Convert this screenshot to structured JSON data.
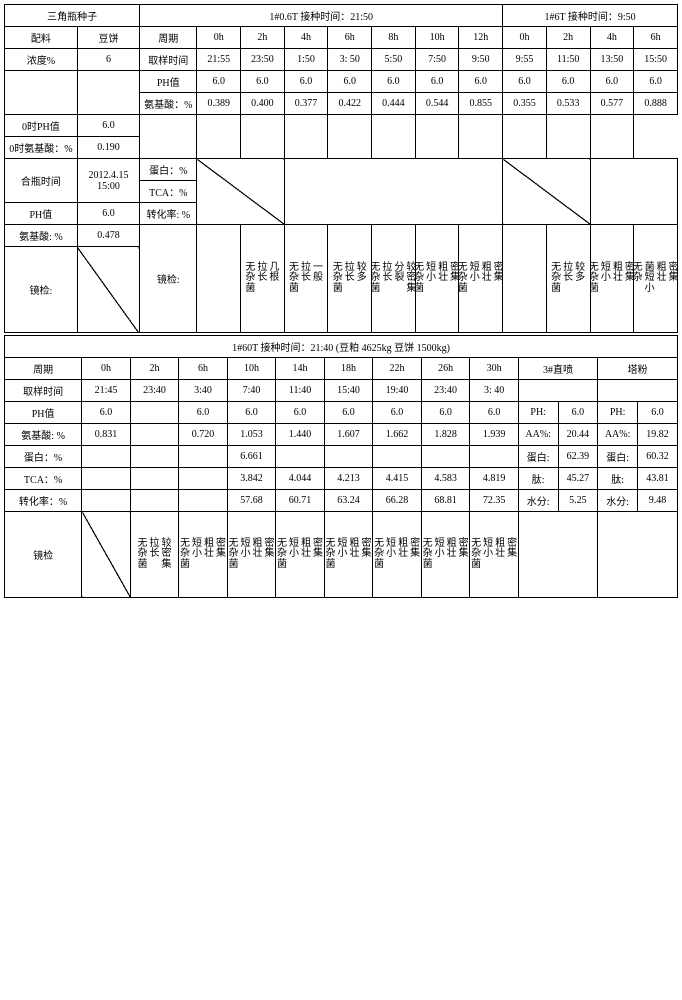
{
  "top": {
    "title_left": "三角瓶种子",
    "title_right1": "1#0.6T 接种时间：21:50",
    "title_right2": "1#6T 接种时间：9:50",
    "row1_labels": [
      "配料",
      "豆饼"
    ],
    "row1_label_period": "周期",
    "row1_hours_a": [
      "0h",
      "2h",
      "4h",
      "6h",
      "8h",
      "10h",
      "12h"
    ],
    "row1_hours_b": [
      "0h",
      "2h",
      "4h",
      "6h"
    ],
    "row2_label": "浓度%",
    "row2_val": "6",
    "row2_right": "取样时间",
    "row2_times_a": [
      "21:55",
      "23:50",
      "1:50",
      "3: 50",
      "5:50",
      "7:50",
      "9:50"
    ],
    "row2_times_b": [
      "9:55",
      "11:50",
      "13:50",
      "15:50"
    ],
    "row6_label_ph": "PH值",
    "row6_ph_val": "6.0",
    "row6_right": "PH值",
    "row6_ph_a": [
      "6.0",
      "6.0",
      "6.0",
      "6.0",
      "6.0",
      "6.0",
      "6.0"
    ],
    "row6_ph_b": [
      "6.0",
      "6.0",
      "6.0",
      "6.0"
    ],
    "row7_label": "0时氨基酸：%",
    "row7_val": "0.190",
    "row7_right": "氨基酸：%",
    "row7_a": [
      "0.389",
      "0.400",
      "0.377",
      "0.422",
      "0.444",
      "0.544",
      "0.855"
    ],
    "row7_b": [
      "0.355",
      "0.533",
      "0.577",
      "0.888"
    ],
    "row8_label": "0时PH值",
    "row8_val": "6.0",
    "row_hp_label": "合瓶时间",
    "row_hp_val": "2012.4.15 15:00",
    "row_hp_right": "蛋白：%",
    "row_tca_right": "TCA：%",
    "row_ph2_label": "PH值",
    "row_ph2_val": "6.0",
    "row_rate_right": "转化率: %",
    "row_amino_label": "氨基酸: %",
    "row_amino_val": "0.478",
    "jing_label": "镜检:",
    "jing_cols_a_2": [
      "无杂菌",
      "拉长",
      "几根"
    ],
    "jing_cols_a_4": [
      "无杂菌",
      "拉长",
      "一般"
    ],
    "jing_cols_a_6": [
      "无杂菌",
      "拉长",
      "较多"
    ],
    "jing_cols_a_8": [
      "无杂菌",
      "拉长",
      "分裂",
      "较密集"
    ],
    "jing_cols_a_10": [
      "无杂菌",
      "短小",
      "粗壮",
      "密集"
    ],
    "jing_cols_a_12": [
      "无杂菌",
      "短小",
      "粗壮",
      "密集"
    ],
    "jing_cols_b_2": [
      "无杂菌",
      "拉长",
      "较多"
    ],
    "jing_cols_b_4": [
      "无杂菌",
      "短小",
      "粗壮",
      "密集"
    ],
    "jing_cols_b_6": [
      "无 杂",
      "菌 短小",
      "粗壮",
      "密集"
    ]
  },
  "bot": {
    "title": "1#60T 接种时间：21:40 (豆粕 4625kg  豆饼 1500kg)",
    "period_label": "周期",
    "hours": [
      "0h",
      "2h",
      "6h",
      "10h",
      "14h",
      "18h",
      "22h",
      "26h",
      "30h"
    ],
    "col_extra1": "3#直喷",
    "col_extra2": "塔粉",
    "sample_label": "取样时间",
    "times": [
      "21:45",
      "23:40",
      "3:40",
      "7:40",
      "11:40",
      "15:40",
      "19:40",
      "23:40",
      "3: 40"
    ],
    "ph_label": "PH值",
    "ph": [
      "6.0",
      "",
      "6.0",
      "6.0",
      "6.0",
      "6.0",
      "6.0",
      "6.0",
      "6.0"
    ],
    "ph_r1_label": "PH:",
    "ph_r1_val": "6.0",
    "ph_r2_label": "PH:",
    "ph_r2_val": "6.0",
    "amino_label": "氨基酸: %",
    "amino": [
      "0.831",
      "",
      "0.720",
      "1.053",
      "1.440",
      "1.607",
      "1.662",
      "1.828",
      "1.939"
    ],
    "aa_r1_label": "AA%:",
    "aa_r1_val": "20.44",
    "aa_r2_label": "AA%:",
    "aa_r2_val": "19.82",
    "db_label": "蛋白：%",
    "db": [
      "",
      "",
      "",
      "6.661",
      "",
      "",
      "",
      "",
      ""
    ],
    "db_r1_label": "蛋白:",
    "db_r1_val": "62.39",
    "db_r2_label": "蛋白:",
    "db_r2_val": "60.32",
    "tca_label": "TCA：%",
    "tca": [
      "",
      "",
      "",
      "3.842",
      "4.044",
      "4.213",
      "4.415",
      "4.583",
      "4.819"
    ],
    "tai_r1_label": "肽:",
    "tai_r1_val": "45.27",
    "tai_r2_label": "肽:",
    "tai_r2_val": "43.81",
    "rate_label": "转化率：%",
    "rate": [
      "",
      "",
      "",
      "57.68",
      "60.71",
      "63.24",
      "66.28",
      "68.81",
      "72.35"
    ],
    "sf_r1_label": "水分:",
    "sf_r1_val": "5.25",
    "sf_r2_label": "水分:",
    "sf_r2_val": "9.48",
    "jing_label": "镜检",
    "jing_2": [
      "无杂菌",
      "拉长",
      "较密集"
    ],
    "jing_6": [
      "无杂菌",
      "短小",
      "粗壮",
      "密集"
    ],
    "jing_10": [
      "无杂菌",
      "短小",
      "粗壮",
      "密集"
    ],
    "jing_14": [
      "无杂菌",
      "短小",
      "粗壮",
      "密集"
    ],
    "jing_18": [
      "无杂菌",
      "短小",
      "粗壮",
      "密集"
    ],
    "jing_22": [
      "无杂菌",
      "短小",
      "粗壮",
      "密集"
    ],
    "jing_26": [
      "无杂菌",
      "短小",
      "粗壮",
      "密集"
    ],
    "jing_30": [
      "无杂菌",
      "短小",
      "粗壮",
      "密集"
    ]
  }
}
